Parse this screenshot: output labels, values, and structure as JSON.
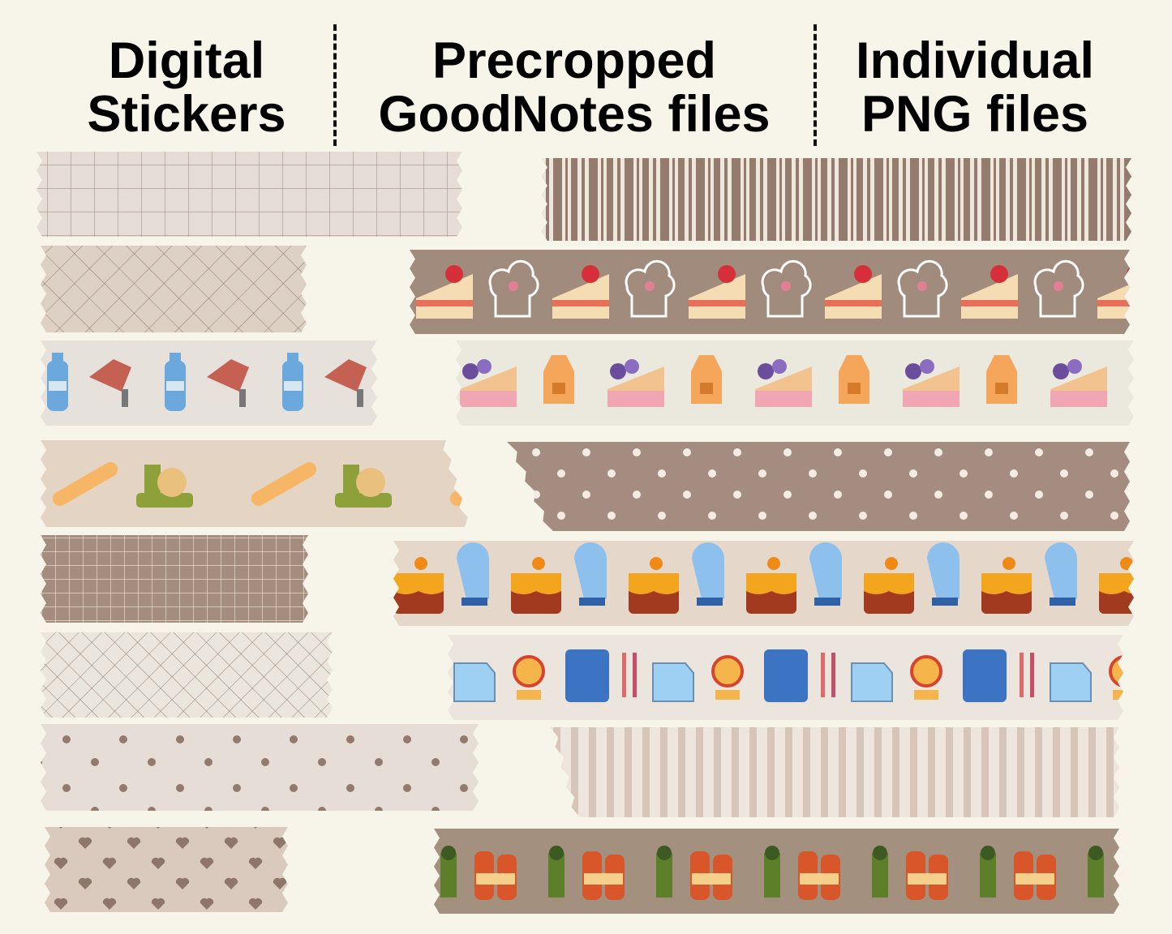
{
  "header": {
    "columns": [
      {
        "line1": "Digital",
        "line2": "Stickers"
      },
      {
        "line1": "Precropped",
        "line2": "GoodNotes files"
      },
      {
        "line1": "Individual",
        "line2": "PNG files"
      }
    ]
  }
}
